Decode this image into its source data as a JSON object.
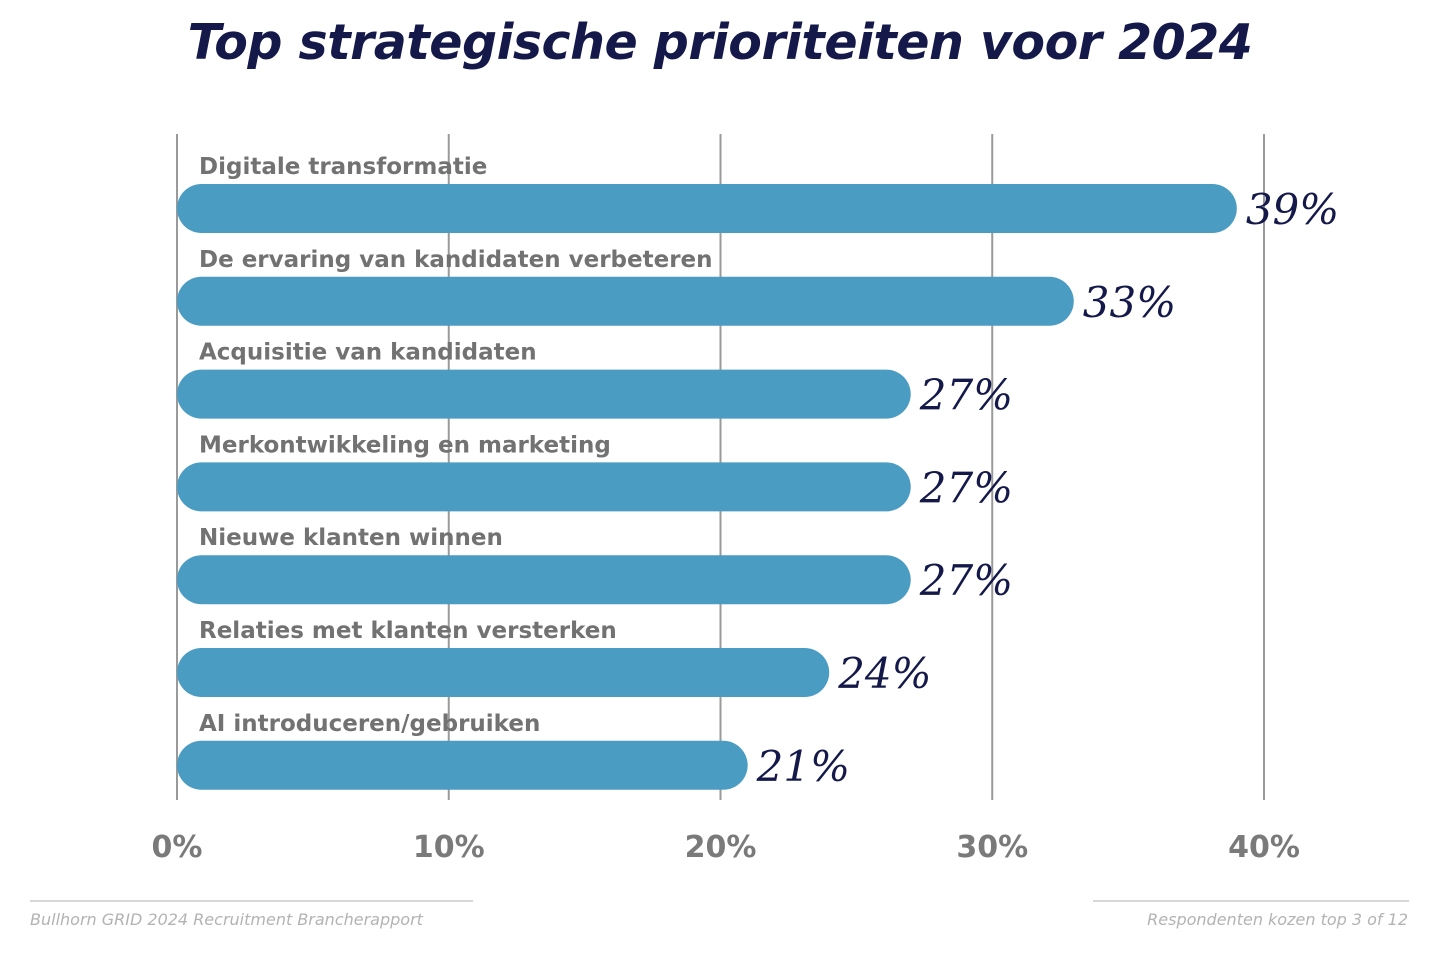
{
  "chart_data": {
    "type": "bar",
    "orientation": "horizontal",
    "title": "Top strategische prioriteiten voor 2024",
    "categories": [
      "Digitale transformatie",
      "De ervaring van kandidaten verbeteren",
      "Acquisitie van kandidaten",
      "Merkontwikkeling en marketing",
      "Nieuwe klanten winnen",
      "Relaties met klanten versterken",
      "AI introduceren/gebruiken"
    ],
    "values": [
      39,
      33,
      27,
      27,
      27,
      24,
      21
    ],
    "value_labels": [
      "39%",
      "33%",
      "27%",
      "27%",
      "27%",
      "24%",
      "21%"
    ],
    "xlim": [
      0,
      40
    ],
    "xticks": [
      0,
      10,
      20,
      30,
      40
    ],
    "xtick_labels": [
      "0%",
      "10%",
      "20%",
      "30%",
      "40%"
    ],
    "xlabel": "",
    "ylabel": "",
    "grid": true,
    "bar_color": "#4a9cc3"
  },
  "footer": {
    "source": "Bullhorn GRID 2024 Recruitment Brancherapport",
    "note": "Respondenten kozen top 3 of 12"
  },
  "colors": {
    "title": "#14194a",
    "value_label": "#14194a",
    "category_label": "#727272",
    "gridline": "#9a9a9a"
  }
}
